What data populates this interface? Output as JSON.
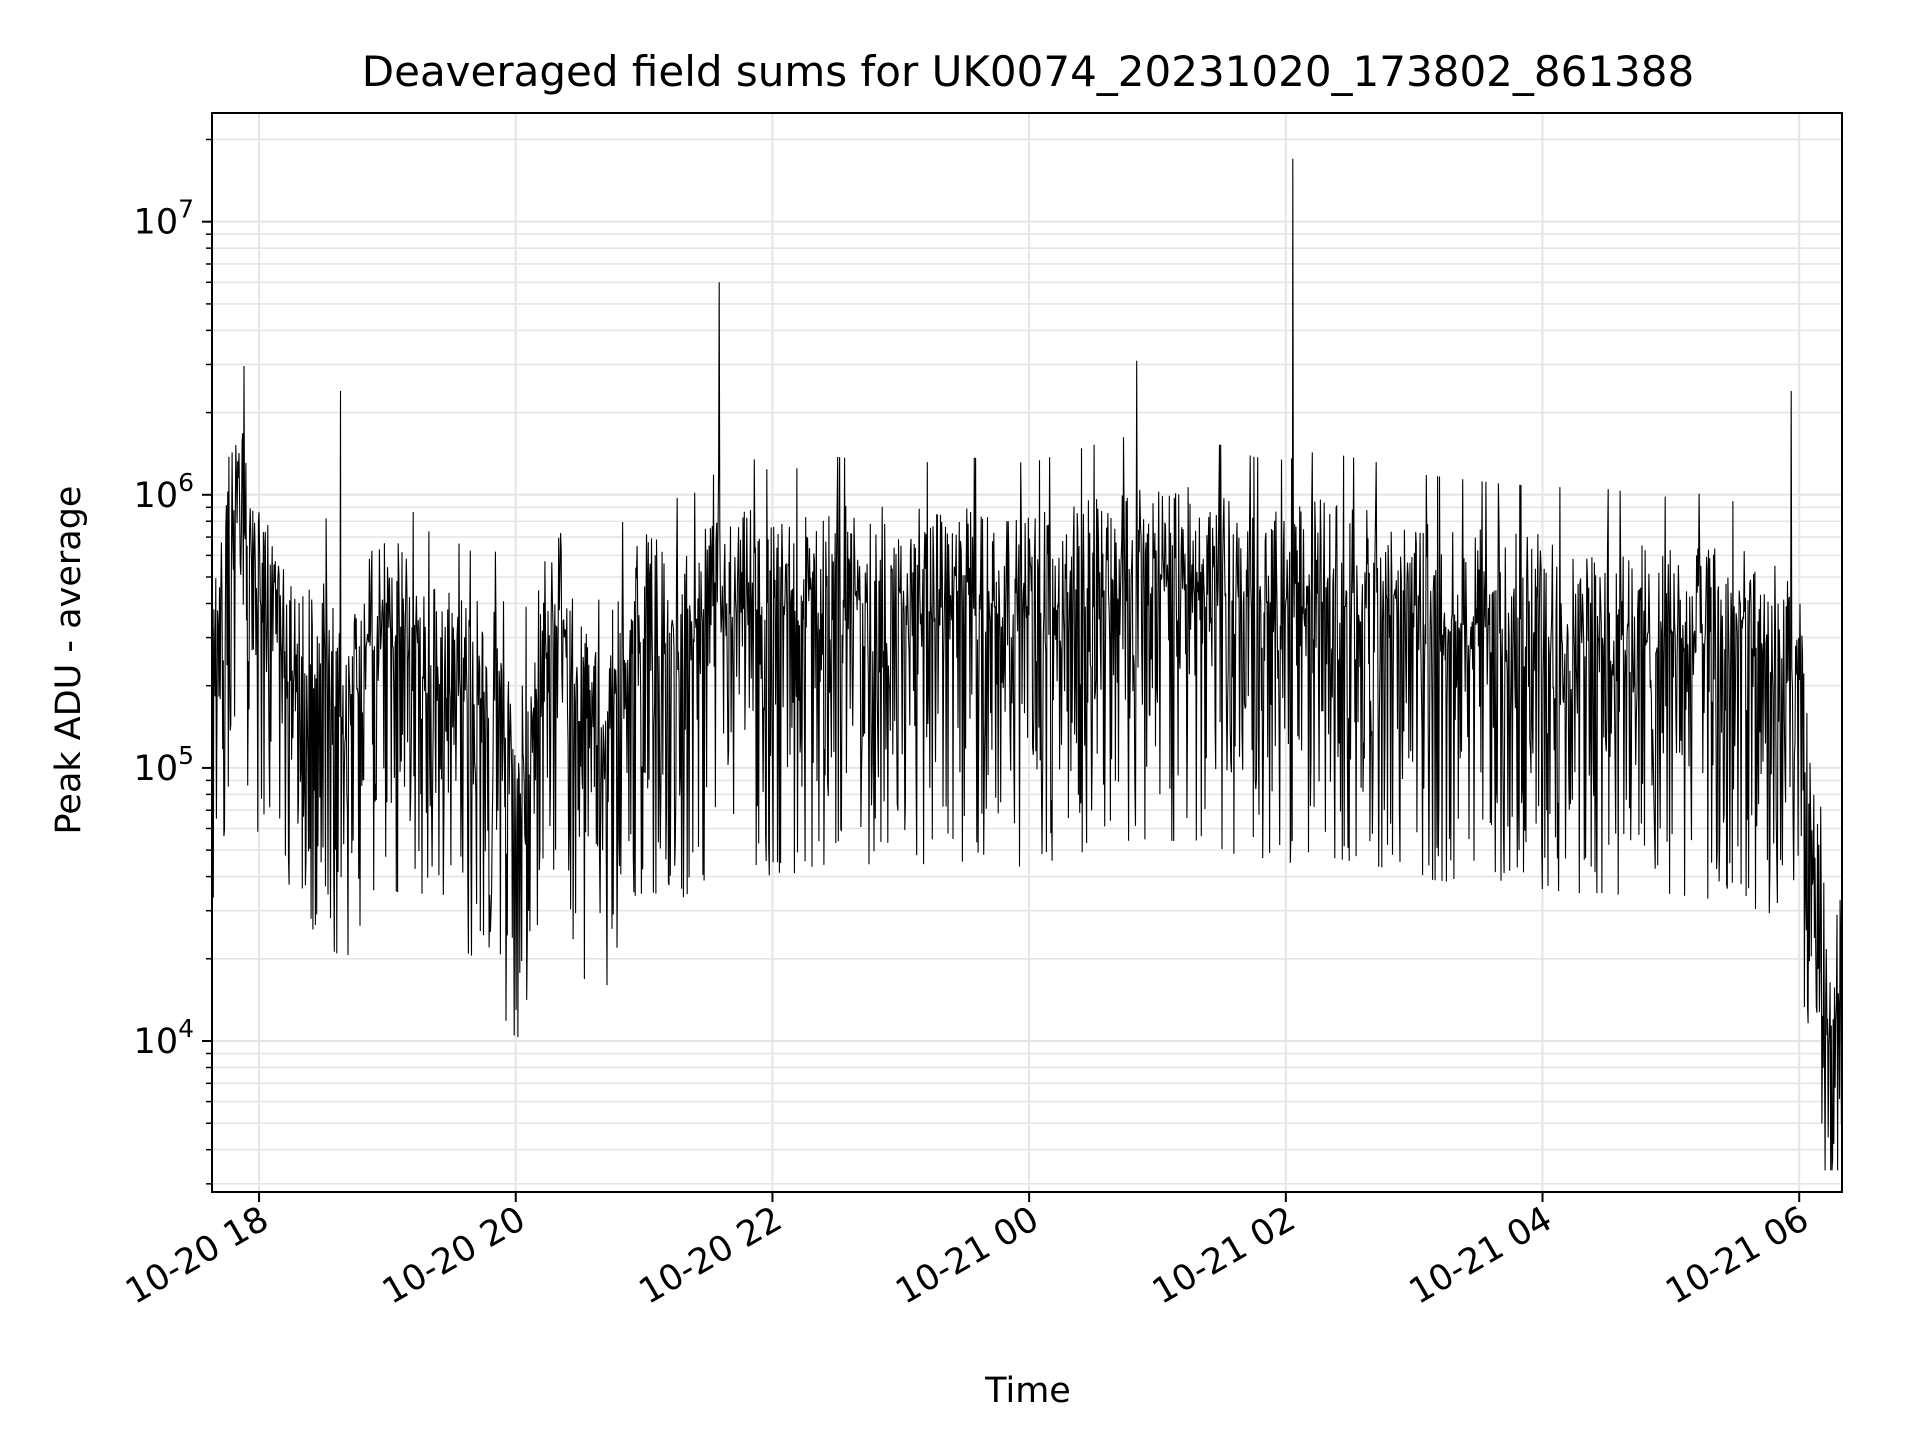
{
  "chart_data": {
    "type": "line",
    "title": "Deaveraged field sums for UK0074_20231020_173802_861388",
    "xlabel": "Time",
    "ylabel": "Peak ADU - average",
    "yscale": "log",
    "xlim": [
      "2023-10-20 17:38",
      "2023-10-21 06:20"
    ],
    "ylim": [
      2800,
      25000000
    ],
    "grid": true,
    "line_color": "#000000",
    "grid_color": "#e5e5e5",
    "x_ticks": [
      {
        "value": "2023-10-20 18:00",
        "label": "10-20 18"
      },
      {
        "value": "2023-10-20 20:00",
        "label": "10-20 20"
      },
      {
        "value": "2023-10-20 22:00",
        "label": "10-20 22"
      },
      {
        "value": "2023-10-21 00:00",
        "label": "10-21 00"
      },
      {
        "value": "2023-10-21 02:00",
        "label": "10-21 02"
      },
      {
        "value": "2023-10-21 04:00",
        "label": "10-21 04"
      },
      {
        "value": "2023-10-21 06:00",
        "label": "10-21 06"
      }
    ],
    "y_ticks": [
      {
        "value": 10000,
        "base": "10",
        "exp": "4"
      },
      {
        "value": 100000,
        "base": "10",
        "exp": "5"
      },
      {
        "value": 1000000,
        "base": "10",
        "exp": "6"
      },
      {
        "value": 10000000,
        "base": "10",
        "exp": "7"
      }
    ],
    "series": [
      {
        "points": [
          [
            "2023-10-20 17:38",
            180000
          ],
          [
            "2023-10-20 17:45",
            600000
          ],
          [
            "2023-10-20 17:52",
            900000
          ],
          [
            "2023-10-20 18:00",
            400000
          ],
          [
            "2023-10-20 18:10",
            300000
          ],
          [
            "2023-10-20 18:20",
            180000
          ],
          [
            "2023-10-20 18:30",
            250000
          ],
          [
            "2023-10-20 18:40",
            120000
          ],
          [
            "2023-10-20 18:50",
            280000
          ],
          [
            "2023-10-20 19:00",
            330000
          ],
          [
            "2023-10-20 19:10",
            250000
          ],
          [
            "2023-10-20 19:20",
            200000
          ],
          [
            "2023-10-20 19:30",
            190000
          ],
          [
            "2023-10-20 19:40",
            170000
          ],
          [
            "2023-10-20 19:50",
            180000
          ],
          [
            "2023-10-20 20:00",
            60000
          ],
          [
            "2023-10-20 20:10",
            200000
          ],
          [
            "2023-10-20 20:20",
            350000
          ],
          [
            "2023-10-20 20:30",
            150000
          ],
          [
            "2023-10-20 20:40",
            110000
          ],
          [
            "2023-10-20 20:50",
            220000
          ],
          [
            "2023-10-20 21:00",
            300000
          ],
          [
            "2023-10-20 21:10",
            280000
          ],
          [
            "2023-10-20 21:20",
            260000
          ],
          [
            "2023-10-20 21:30",
            320000
          ],
          [
            "2023-10-20 21:40",
            350000
          ],
          [
            "2023-10-20 21:50",
            380000
          ],
          [
            "2023-10-20 22:00",
            330000
          ],
          [
            "2023-10-20 22:15",
            350000
          ],
          [
            "2023-10-20 22:30",
            380000
          ],
          [
            "2023-10-20 22:45",
            370000
          ],
          [
            "2023-10-20 23:00",
            380000
          ],
          [
            "2023-10-20 23:15",
            360000
          ],
          [
            "2023-10-20 23:30",
            380000
          ],
          [
            "2023-10-20 23:45",
            370000
          ],
          [
            "2023-10-21 00:00",
            360000
          ],
          [
            "2023-10-21 00:15",
            390000
          ],
          [
            "2023-10-21 00:30",
            420000
          ],
          [
            "2023-10-21 00:45",
            450000
          ],
          [
            "2023-10-21 01:00",
            460000
          ],
          [
            "2023-10-21 01:15",
            440000
          ],
          [
            "2023-10-21 01:30",
            420000
          ],
          [
            "2023-10-21 01:45",
            380000
          ],
          [
            "2023-10-21 02:00",
            370000
          ],
          [
            "2023-10-21 02:15",
            400000
          ],
          [
            "2023-10-21 02:30",
            380000
          ],
          [
            "2023-10-21 02:45",
            360000
          ],
          [
            "2023-10-21 03:00",
            330000
          ],
          [
            "2023-10-21 03:15",
            320000
          ],
          [
            "2023-10-21 03:30",
            310000
          ],
          [
            "2023-10-21 03:45",
            300000
          ],
          [
            "2023-10-21 04:00",
            300000
          ],
          [
            "2023-10-21 04:15",
            290000
          ],
          [
            "2023-10-21 04:30",
            290000
          ],
          [
            "2023-10-21 04:45",
            280000
          ],
          [
            "2023-10-21 05:00",
            270000
          ],
          [
            "2023-10-21 05:15",
            280000
          ],
          [
            "2023-10-21 05:30",
            260000
          ],
          [
            "2023-10-21 05:45",
            250000
          ],
          [
            "2023-10-21 06:00",
            180000
          ],
          [
            "2023-10-21 06:05",
            60000
          ],
          [
            "2023-10-21 06:10",
            20000
          ],
          [
            "2023-10-21 06:15",
            10000
          ],
          [
            "2023-10-21 06:20",
            15000
          ]
        ]
      }
    ],
    "spikes": [
      {
        "x": "2023-10-20 21:35",
        "y": 6000000
      },
      {
        "x": "2023-10-21 02:03",
        "y": 17000000
      },
      {
        "x": "2023-10-21 00:50",
        "y": 3100000
      },
      {
        "x": "2023-10-21 05:56",
        "y": 2400000
      },
      {
        "x": "2023-10-20 18:38",
        "y": 2400000
      },
      {
        "x": "2023-10-20 20:00",
        "y": 13000
      },
      {
        "x": "2023-10-21 06:16",
        "y": 4200
      }
    ],
    "band": {
      "min_ratio": 0.12,
      "max_ratio": 5.0
    }
  }
}
